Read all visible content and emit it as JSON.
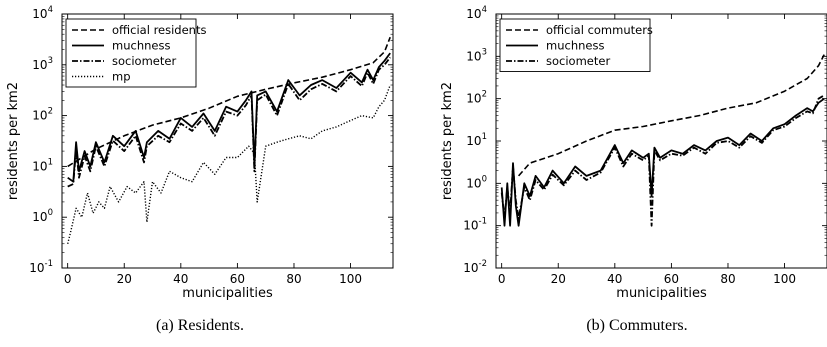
{
  "chart_data": [
    {
      "type": "line",
      "caption": "(a) Residents.",
      "xlabel": "municipalities",
      "ylabel": "residents per km2",
      "xlim": [
        -2,
        115
      ],
      "ylim": [
        0.1,
        10000
      ],
      "yscale": "log",
      "xticks": [
        "0",
        "20",
        "40",
        "60",
        "80",
        "100"
      ],
      "yticks": [
        {
          "base": "10",
          "exp": "-1"
        },
        {
          "base": "10",
          "exp": "0"
        },
        {
          "base": "10",
          "exp": "1"
        },
        {
          "base": "10",
          "exp": "2"
        },
        {
          "base": "10",
          "exp": "3"
        },
        {
          "base": "10",
          "exp": "4"
        }
      ],
      "legend_position": "top-left",
      "series": [
        {
          "name": "official residents",
          "style": "dashed",
          "x": [
            0,
            10,
            20,
            30,
            40,
            50,
            60,
            70,
            80,
            90,
            100,
            108,
            112,
            114
          ],
          "y": [
            10,
            22,
            40,
            65,
            90,
            140,
            240,
            330,
            440,
            570,
            800,
            1100,
            1800,
            3500
          ]
        },
        {
          "name": "muchness",
          "style": "solid",
          "x": [
            0,
            2,
            3,
            4,
            6,
            8,
            10,
            13,
            16,
            20,
            24,
            27,
            28,
            32,
            36,
            40,
            44,
            48,
            52,
            56,
            60,
            63,
            65,
            66,
            67,
            70,
            74,
            78,
            82,
            86,
            90,
            95,
            100,
            104,
            106,
            108,
            110,
            112,
            114
          ],
          "y": [
            6,
            5,
            30,
            8,
            20,
            10,
            30,
            12,
            40,
            25,
            50,
            15,
            30,
            50,
            35,
            90,
            60,
            110,
            50,
            150,
            120,
            200,
            300,
            10,
            250,
            300,
            120,
            500,
            250,
            400,
            500,
            350,
            700,
            450,
            800,
            500,
            900,
            1200,
            1700
          ]
        },
        {
          "name": "sociometer",
          "style": "dashdot",
          "x": [
            0,
            2,
            3,
            4,
            6,
            8,
            10,
            13,
            16,
            20,
            24,
            27,
            28,
            32,
            36,
            40,
            44,
            48,
            52,
            56,
            60,
            63,
            65,
            66,
            67,
            70,
            74,
            78,
            82,
            86,
            90,
            95,
            100,
            104,
            106,
            108,
            110,
            112,
            114
          ],
          "y": [
            4,
            4.5,
            22,
            6,
            16,
            8,
            25,
            10,
            32,
            20,
            40,
            12,
            25,
            40,
            30,
            70,
            50,
            90,
            40,
            120,
            100,
            160,
            250,
            8,
            200,
            260,
            100,
            420,
            200,
            330,
            420,
            300,
            600,
            380,
            700,
            420,
            800,
            1000,
            1400
          ]
        },
        {
          "name": "mp",
          "style": "dotted",
          "x": [
            0,
            1,
            3,
            5,
            7,
            9,
            11,
            13,
            15,
            18,
            21,
            24,
            27,
            28,
            30,
            33,
            36,
            40,
            44,
            48,
            52,
            56,
            60,
            64,
            66,
            67,
            70,
            74,
            78,
            82,
            86,
            90,
            95,
            100,
            104,
            108,
            110,
            112,
            114
          ],
          "y": [
            0.3,
            0.5,
            1.5,
            1,
            3,
            1.2,
            2,
            1.5,
            4,
            2,
            4,
            3,
            5,
            0.8,
            5,
            3,
            8,
            6,
            5,
            12,
            7,
            15,
            15,
            25,
            18,
            2,
            25,
            30,
            35,
            40,
            35,
            50,
            60,
            80,
            100,
            90,
            150,
            200,
            400
          ]
        }
      ]
    },
    {
      "type": "line",
      "caption": "(b) Commuters.",
      "xlabel": "municipalities",
      "ylabel": "residents per km2",
      "xlim": [
        -2,
        115
      ],
      "ylim": [
        0.01,
        10000
      ],
      "yscale": "log",
      "xticks": [
        "0",
        "20",
        "40",
        "60",
        "80",
        "100"
      ],
      "yticks": [
        {
          "base": "10",
          "exp": "-2"
        },
        {
          "base": "10",
          "exp": "-1"
        },
        {
          "base": "10",
          "exp": "0"
        },
        {
          "base": "10",
          "exp": "1"
        },
        {
          "base": "10",
          "exp": "2"
        },
        {
          "base": "10",
          "exp": "3"
        },
        {
          "base": "10",
          "exp": "4"
        }
      ],
      "legend_position": "top-left",
      "series": [
        {
          "name": "official commuters",
          "style": "dashed",
          "x": [
            6,
            10,
            20,
            30,
            40,
            50,
            60,
            70,
            80,
            90,
            100,
            108,
            112,
            114
          ],
          "y": [
            1.5,
            3,
            5,
            10,
            18,
            22,
            30,
            40,
            60,
            80,
            150,
            300,
            600,
            1100
          ]
        },
        {
          "name": "muchness",
          "style": "solid",
          "x": [
            0,
            1,
            2,
            3,
            4,
            5,
            6,
            8,
            10,
            12,
            15,
            18,
            22,
            26,
            30,
            35,
            40,
            43,
            46,
            50,
            52,
            53,
            54,
            56,
            60,
            64,
            68,
            72,
            76,
            80,
            84,
            88,
            92,
            96,
            100,
            104,
            108,
            110,
            112,
            114
          ],
          "y": [
            0.8,
            0.1,
            1,
            0.1,
            3,
            0.3,
            0.1,
            1,
            0.5,
            1.5,
            0.8,
            2,
            1,
            2.5,
            1.5,
            2,
            8,
            3,
            6,
            4,
            5,
            0.5,
            7,
            4,
            6,
            5,
            8,
            6,
            10,
            12,
            8,
            15,
            10,
            20,
            25,
            40,
            60,
            50,
            80,
            100
          ]
        },
        {
          "name": "sociometer",
          "style": "dashdot",
          "x": [
            0,
            1,
            2,
            3,
            4,
            5,
            6,
            8,
            10,
            12,
            15,
            18,
            22,
            26,
            30,
            35,
            40,
            43,
            46,
            50,
            52,
            53,
            54,
            56,
            60,
            64,
            68,
            72,
            76,
            80,
            84,
            88,
            92,
            96,
            100,
            104,
            108,
            110,
            112,
            114
          ],
          "y": [
            0.6,
            0.15,
            0.8,
            0.2,
            2.5,
            0.4,
            0.15,
            0.8,
            0.4,
            1.2,
            0.7,
            1.6,
            0.9,
            2,
            1.2,
            1.8,
            7,
            2.5,
            5,
            3.5,
            4.5,
            0.1,
            6,
            3.5,
            5,
            4.5,
            7,
            5,
            9,
            10,
            7,
            13,
            9,
            18,
            22,
            35,
            50,
            45,
            100,
            120
          ]
        }
      ]
    }
  ]
}
